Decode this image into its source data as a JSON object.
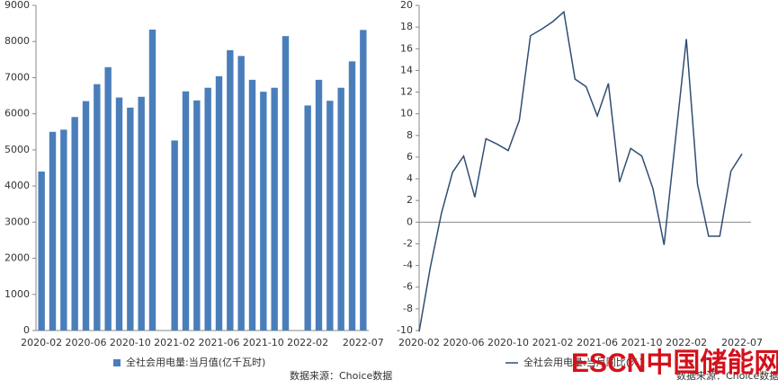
{
  "chart_data": [
    {
      "type": "bar",
      "legend": "全社会用电量:当月值(亿千瓦时)",
      "source": "数据来源：Choice数据",
      "color": "#4a7ebb",
      "categories": [
        "2020-02",
        null,
        null,
        null,
        "2020-06",
        null,
        null,
        null,
        "2020-10",
        null,
        null,
        null,
        "2021-02",
        null,
        null,
        null,
        "2021-06",
        null,
        null,
        null,
        "2021-10",
        null,
        null,
        null,
        "2022-02",
        null,
        null,
        null,
        null,
        "2022-07"
      ],
      "values": [
        4400,
        5500,
        5560,
        5910,
        6350,
        6820,
        7290,
        6450,
        6170,
        6470,
        8330,
        null,
        5260,
        6620,
        6370,
        6720,
        7040,
        7760,
        7600,
        6940,
        6610,
        6720,
        8150,
        null,
        6230,
        6940,
        6360,
        6720,
        7450,
        8320
      ],
      "ylim": [
        0,
        9000
      ],
      "yticks": [
        0,
        1000,
        2000,
        3000,
        4000,
        5000,
        6000,
        7000,
        8000,
        9000
      ]
    },
    {
      "type": "line",
      "legend": "全社会用电量:当月同比(%)",
      "source": "数据来源：Choice数据",
      "color": "#2f4e72",
      "categories": [
        "2020-02",
        null,
        null,
        null,
        "2020-06",
        null,
        null,
        null,
        "2020-10",
        null,
        null,
        null,
        "2021-02",
        null,
        null,
        null,
        "2021-06",
        null,
        null,
        null,
        "2021-10",
        null,
        null,
        null,
        "2022-02",
        null,
        null,
        null,
        null,
        "2022-07"
      ],
      "values": [
        -10.1,
        -4.2,
        0.8,
        4.6,
        6.1,
        2.3,
        7.7,
        7.2,
        6.6,
        9.4,
        17.2,
        17.8,
        18.5,
        19.4,
        13.2,
        12.5,
        9.8,
        12.8,
        3.7,
        6.8,
        6.1,
        3.1,
        -2.1,
        7.4,
        16.9,
        3.5,
        -1.3,
        -1.3,
        4.7,
        6.3
      ],
      "ylim": [
        -10,
        20
      ],
      "yticks": [
        -10,
        -8,
        -6,
        -4,
        -2,
        0,
        2,
        4,
        6,
        8,
        10,
        12,
        14,
        16,
        18,
        20
      ]
    }
  ],
  "watermark": "ESCN中国储能网"
}
